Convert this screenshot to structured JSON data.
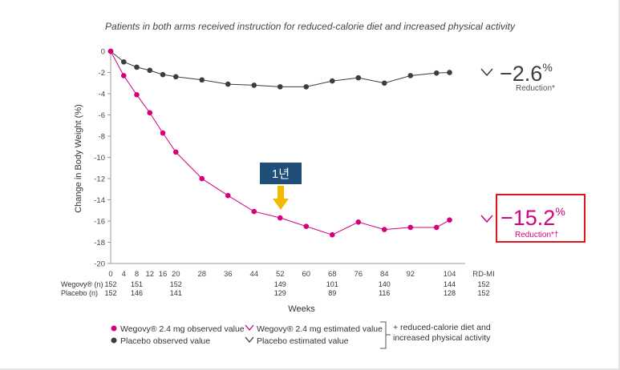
{
  "subtitle": "Patients in both arms received instruction for reduced-calorie diet and increased physical activity",
  "colors": {
    "wegovy": "#d6007e",
    "placebo": "#3d3d3d",
    "highlight_border": "#e0151b",
    "callout_bg": "#1f4e79",
    "arrow": "#f5b800"
  },
  "chart_data": {
    "type": "line",
    "xlabel": "Weeks",
    "ylabel": "Change in Body Weight (%)",
    "ylim": [
      -20,
      0
    ],
    "yticks": [
      0,
      -2,
      -4,
      -6,
      -8,
      -10,
      -12,
      -14,
      -16,
      -18,
      -20
    ],
    "xticks": [
      0,
      4,
      8,
      12,
      16,
      20,
      28,
      36,
      44,
      52,
      60,
      68,
      76,
      84,
      92,
      104
    ],
    "extra_xtick": "RD-MI",
    "series": [
      {
        "name": "Placebo observed value",
        "x": [
          0,
          4,
          8,
          12,
          16,
          20,
          28,
          36,
          44,
          52,
          60,
          68,
          76,
          84,
          92,
          100,
          104
        ],
        "values": [
          0,
          -1.0,
          -1.5,
          -1.8,
          -2.2,
          -2.4,
          -2.7,
          -3.1,
          -3.2,
          -3.35,
          -3.35,
          -2.8,
          -2.5,
          -3.0,
          -2.3,
          -2.05,
          -2.0
        ]
      },
      {
        "name": "Wegovy® 2.4 mg observed value",
        "x": [
          0,
          4,
          8,
          12,
          16,
          20,
          28,
          36,
          44,
          52,
          60,
          68,
          76,
          84,
          92,
          100,
          104
        ],
        "values": [
          0,
          -2.3,
          -4.1,
          -5.8,
          -7.7,
          -9.5,
          -12.0,
          -13.6,
          -15.1,
          -15.7,
          -16.5,
          -17.3,
          -16.1,
          -16.8,
          -16.6,
          -16.6,
          -15.9
        ]
      }
    ],
    "n_rows": [
      {
        "label": "Wegovy® (n)",
        "weeks": [
          "0",
          "8",
          "20",
          "52",
          "68",
          "84",
          "104",
          "RD-MI"
        ],
        "values": [
          "152",
          "151",
          "152",
          "149",
          "101",
          "140",
          "144",
          "152"
        ]
      },
      {
        "label": "Placebo (n)",
        "weeks": [
          "0",
          "8",
          "20",
          "52",
          "68",
          "84",
          "104",
          "RD-MI"
        ],
        "values": [
          "152",
          "146",
          "141",
          "129",
          "89",
          "116",
          "128",
          "152"
        ]
      }
    ],
    "annotations": {
      "callout_label": "1년",
      "callout_week": 52,
      "placebo_end": {
        "value": "−2.6",
        "unit": "%",
        "label": "Reduction*"
      },
      "wegovy_end": {
        "value": "−15.2",
        "unit": "%",
        "label": "Reduction*†"
      }
    },
    "legend": {
      "wegovy_observed": "Wegovy® 2.4 mg observed value",
      "placebo_observed": "Placebo observed value",
      "wegovy_estimated": "Wegovy® 2.4 mg estimated value",
      "placebo_estimated": "Placebo estimated value",
      "note": "+ reduced-calorie diet and increased physical activity"
    }
  }
}
